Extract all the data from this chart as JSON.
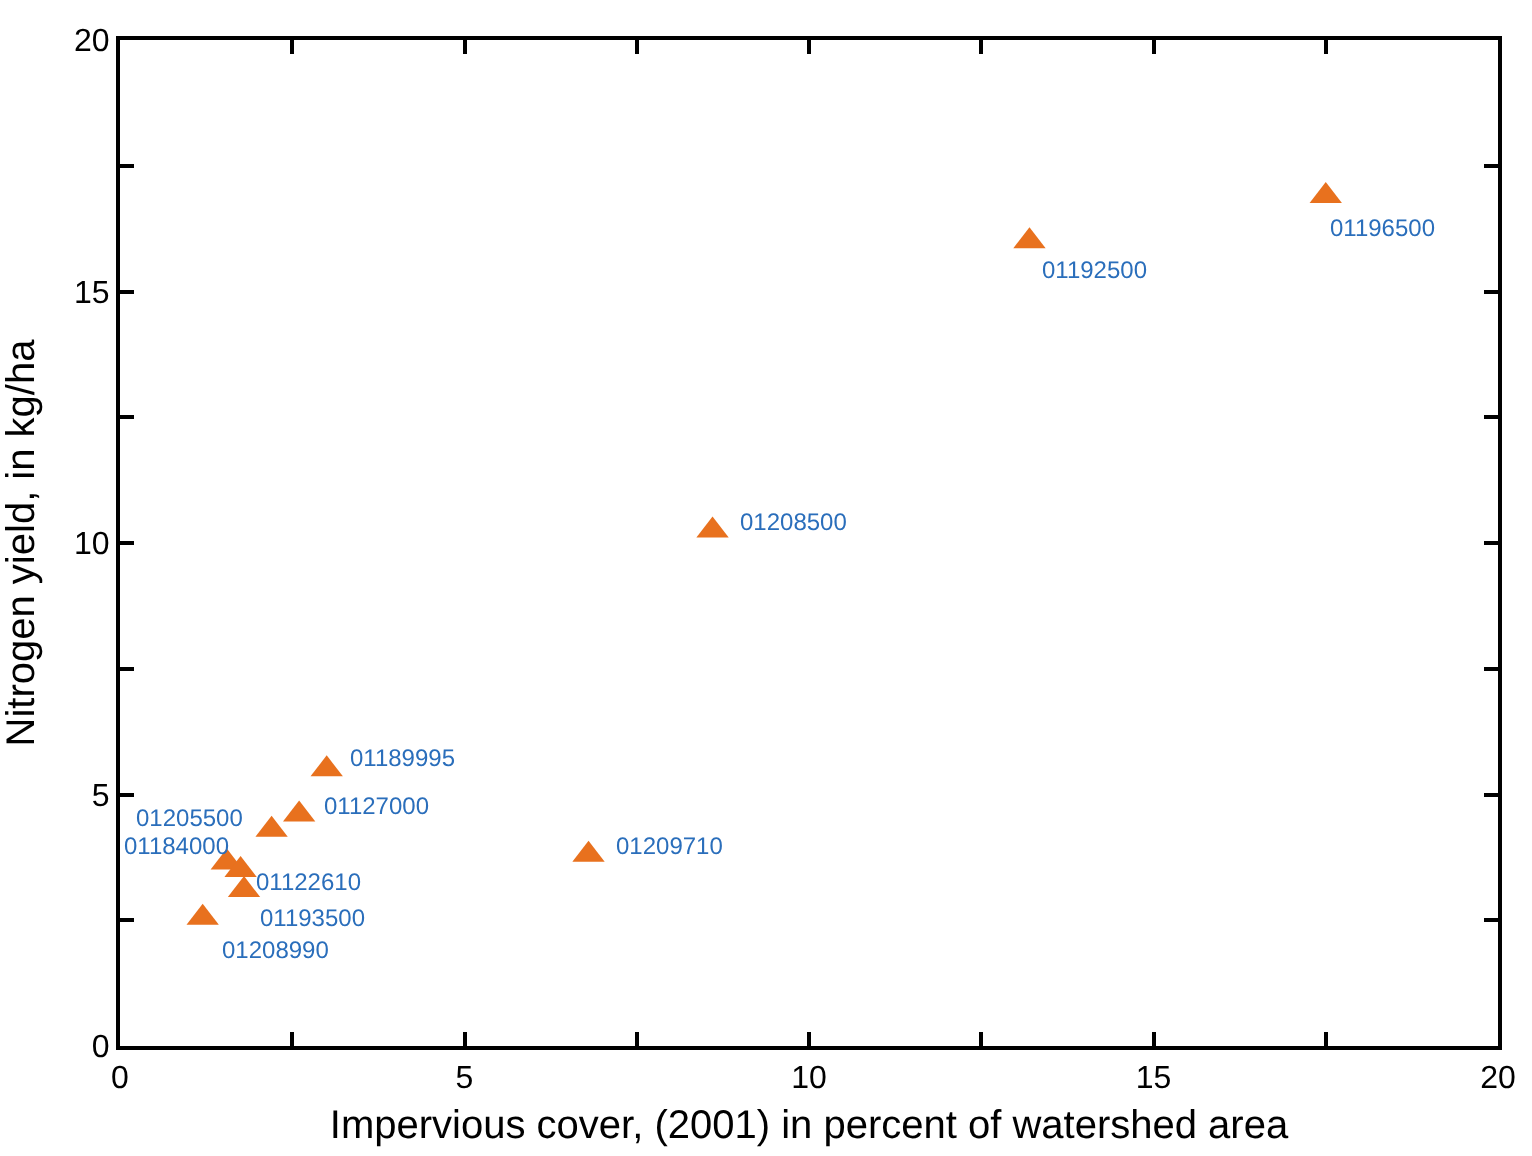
{
  "chart_data": {
    "type": "scatter",
    "xlabel": "Impervious cover, (2001) in percent of watershed area",
    "ylabel": "Nitrogen yield, in kg/ha",
    "series": [
      {
        "color": "#e8711e",
        "x": [
          17.5,
          13.2,
          8.6,
          6.8,
          3.0,
          2.6,
          2.2,
          1.55,
          1.75,
          1.8,
          1.2
        ],
        "values": [
          16.9,
          16.0,
          10.25,
          3.8,
          5.5,
          4.6,
          4.3,
          3.65,
          3.5,
          3.1,
          2.55
        ]
      }
    ],
    "annotations": [
      {
        "text": "01196500",
        "x": 17.5,
        "y": 16.9
      },
      {
        "text": "01192500",
        "x": 13.2,
        "y": 16.0
      },
      {
        "text": "01208500",
        "x": 8.6,
        "y": 10.25
      },
      {
        "text": "01209710",
        "x": 6.8,
        "y": 3.8
      },
      {
        "text": "01189995",
        "x": 3.0,
        "y": 5.5
      },
      {
        "text": "01127000",
        "x": 2.6,
        "y": 4.6
      },
      {
        "text": "01205500",
        "x": 2.2,
        "y": 4.3
      },
      {
        "text": "01184000",
        "x": 1.55,
        "y": 3.65
      },
      {
        "text": "01122610",
        "x": 1.75,
        "y": 3.5
      },
      {
        "text": "01193500",
        "x": 1.8,
        "y": 3.1
      },
      {
        "text": "01208990",
        "x": 1.2,
        "y": 2.55
      }
    ],
    "xlim": [
      0,
      20
    ],
    "ylim": [
      0,
      20
    ],
    "xticks": [
      0,
      {
        "value": 2.5,
        "label": null
      },
      5,
      {
        "value": 7.5,
        "label": null
      },
      10,
      {
        "value": 12.5,
        "label": null
      },
      15,
      {
        "value": 17.5,
        "label": null
      },
      20
    ],
    "yticks": [
      0,
      {
        "value": 2.5,
        "label": null
      },
      5,
      {
        "value": 7.5,
        "label": null
      },
      10,
      {
        "value": 12.5,
        "label": null
      },
      15,
      {
        "value": 17.5,
        "label": null
      },
      20
    ],
    "marker": "triangle"
  }
}
